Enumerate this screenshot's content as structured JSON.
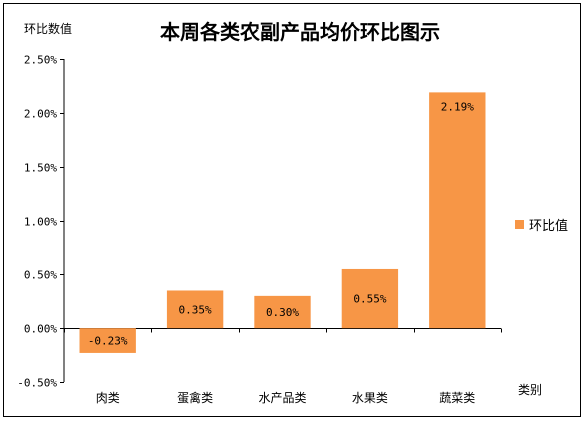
{
  "chart_data": {
    "type": "bar",
    "title": "本周各类农副产品均价环比图示",
    "ylabel": "环比数值",
    "xlabel": "类别",
    "categories": [
      "肉类",
      "蛋禽类",
      "水产品类",
      "水果类",
      "蔬菜类"
    ],
    "series": [
      {
        "name": "环比值",
        "values": [
          -0.23,
          0.35,
          0.3,
          0.55,
          2.19
        ],
        "labels": [
          "-0.23%",
          "0.35%",
          "0.30%",
          "0.55%",
          "2.19%"
        ]
      }
    ],
    "ylim": [
      -0.5,
      2.5
    ],
    "yticks": [
      -0.5,
      0.0,
      0.5,
      1.0,
      1.5,
      2.0,
      2.5
    ],
    "ytick_labels": [
      "-0.50%",
      "0.00%",
      "0.50%",
      "1.00%",
      "1.50%",
      "2.00%",
      "2.50%"
    ],
    "grid": false,
    "legend": "right",
    "colors": {
      "bar": "#F79646"
    }
  }
}
